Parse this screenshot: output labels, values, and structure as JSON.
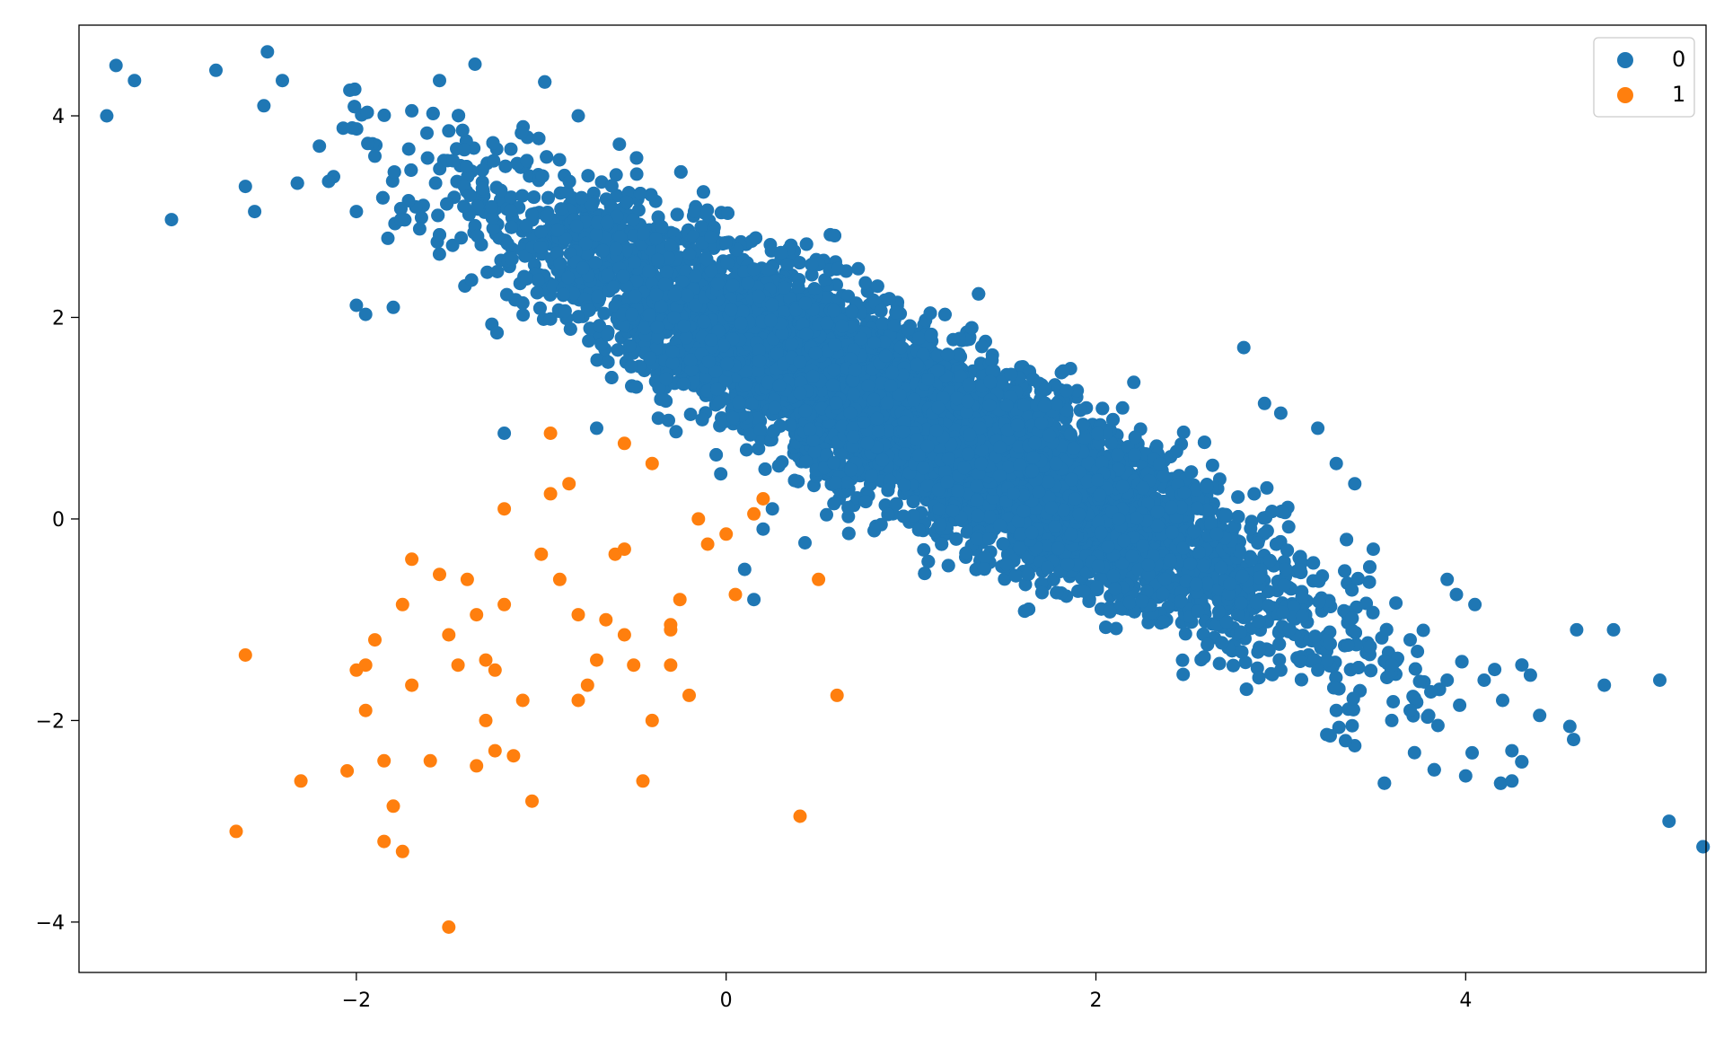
{
  "chart_data": {
    "type": "scatter",
    "title": "",
    "xlabel": "",
    "ylabel": "",
    "xlim": [
      -3.5,
      5.3
    ],
    "ylim": [
      -4.5,
      4.9
    ],
    "xticks": [
      -2,
      0,
      2,
      4
    ],
    "yticks": [
      -4,
      -2,
      0,
      2,
      4
    ],
    "tick_labels": {
      "x": [
        "−2",
        "0",
        "2",
        "4"
      ],
      "y": [
        "−4",
        "−2",
        "0",
        "2",
        "4"
      ]
    },
    "grid": false,
    "legend": {
      "placement": "top-right",
      "entries": [
        "0",
        "1"
      ]
    },
    "series": [
      {
        "name": "0",
        "color": "#1f77b4",
        "distribution": {
          "n": 9900,
          "mean": [
            1.0,
            1.0
          ],
          "std": [
            1.0,
            1.0
          ],
          "correlation": -0.9
        },
        "points": [
          [
            -3.3,
            4.5
          ],
          [
            -3.2,
            4.35
          ],
          [
            -3.35,
            4.0
          ],
          [
            -2.4,
            4.35
          ],
          [
            -2.5,
            4.1
          ],
          [
            -1.55,
            4.35
          ],
          [
            -0.8,
            4.0
          ],
          [
            -2.6,
            3.3
          ],
          [
            -2.55,
            3.05
          ],
          [
            -3.0,
            2.97
          ],
          [
            -2.2,
            3.7
          ],
          [
            -1.7,
            4.05
          ],
          [
            -1.5,
            3.85
          ],
          [
            -2.0,
            2.12
          ],
          [
            -1.95,
            2.03
          ],
          [
            -1.8,
            2.1
          ],
          [
            -2.0,
            3.05
          ],
          [
            -1.9,
            3.6
          ],
          [
            -2.15,
            3.35
          ],
          [
            -1.2,
            0.85
          ],
          [
            -0.7,
            0.9
          ],
          [
            0.15,
            -0.8
          ],
          [
            0.1,
            -0.5
          ],
          [
            0.2,
            -0.1
          ],
          [
            0.25,
            0.1
          ],
          [
            2.8,
            1.7
          ],
          [
            3.0,
            1.05
          ],
          [
            3.2,
            0.9
          ],
          [
            3.3,
            0.55
          ],
          [
            3.4,
            0.35
          ],
          [
            3.9,
            -0.6
          ],
          [
            3.95,
            -0.75
          ],
          [
            4.1,
            -1.6
          ],
          [
            4.2,
            -1.8
          ],
          [
            4.35,
            -1.55
          ],
          [
            4.4,
            -1.95
          ],
          [
            4.6,
            -1.1
          ],
          [
            4.8,
            -1.1
          ],
          [
            4.75,
            -1.65
          ],
          [
            5.05,
            -1.6
          ],
          [
            5.1,
            -3.0
          ],
          [
            4.0,
            -2.55
          ],
          [
            4.25,
            -2.3
          ],
          [
            4.25,
            -2.6
          ],
          [
            3.85,
            -2.05
          ],
          [
            3.4,
            -2.25
          ],
          [
            3.35,
            -2.2
          ],
          [
            3.5,
            -0.3
          ],
          [
            3.2,
            -1.5
          ],
          [
            3.6,
            -1.45
          ],
          [
            3.7,
            -1.9
          ],
          [
            3.8,
            -1.95
          ],
          [
            3.9,
            -1.6
          ],
          [
            4.05,
            -0.85
          ],
          [
            3.7,
            -1.2
          ],
          [
            3.6,
            -2.0
          ],
          [
            3.3,
            -1.9
          ],
          [
            3.0,
            -1.5
          ]
        ]
      },
      {
        "name": "1",
        "color": "#ff7f0e",
        "points": [
          [
            -2.6,
            -1.35
          ],
          [
            -2.65,
            -3.1
          ],
          [
            -2.3,
            -2.6
          ],
          [
            -2.05,
            -2.5
          ],
          [
            -2.0,
            -1.5
          ],
          [
            -1.9,
            -1.2
          ],
          [
            -1.85,
            -3.2
          ],
          [
            -1.85,
            -2.4
          ],
          [
            -1.8,
            -2.85
          ],
          [
            -1.7,
            -1.65
          ],
          [
            -1.75,
            -0.85
          ],
          [
            -1.7,
            -0.4
          ],
          [
            -1.55,
            -0.55
          ],
          [
            -1.5,
            -1.15
          ],
          [
            -1.45,
            -1.45
          ],
          [
            -1.4,
            -0.6
          ],
          [
            -1.35,
            -0.95
          ],
          [
            -1.3,
            -1.4
          ],
          [
            -1.3,
            -2.0
          ],
          [
            -1.25,
            -1.5
          ],
          [
            -1.2,
            -0.85
          ],
          [
            -1.15,
            -2.35
          ],
          [
            -1.1,
            -1.8
          ],
          [
            -1.0,
            -0.35
          ],
          [
            -0.95,
            0.25
          ],
          [
            -0.9,
            -0.6
          ],
          [
            -0.85,
            0.35
          ],
          [
            -0.8,
            -0.95
          ],
          [
            -0.75,
            -1.65
          ],
          [
            -0.7,
            -1.4
          ],
          [
            -0.6,
            -0.35
          ],
          [
            -0.55,
            -1.15
          ],
          [
            -0.5,
            -1.45
          ],
          [
            -0.45,
            -2.6
          ],
          [
            -0.4,
            -2.0
          ],
          [
            -0.3,
            -1.05
          ],
          [
            -0.25,
            -0.8
          ],
          [
            -0.2,
            -1.75
          ],
          [
            -0.15,
            0.0
          ],
          [
            -0.1,
            -0.25
          ],
          [
            0.0,
            -0.15
          ],
          [
            0.05,
            -0.75
          ],
          [
            0.15,
            0.05
          ],
          [
            0.2,
            0.2
          ],
          [
            0.4,
            -2.95
          ],
          [
            0.5,
            -0.6
          ],
          [
            0.6,
            -1.75
          ],
          [
            -0.55,
            0.75
          ],
          [
            -0.4,
            0.55
          ],
          [
            -0.95,
            0.85
          ],
          [
            -1.2,
            0.1
          ],
          [
            -1.5,
            -4.05
          ],
          [
            -1.75,
            -3.3
          ],
          [
            -1.95,
            -1.9
          ],
          [
            -1.95,
            -1.45
          ],
          [
            -1.6,
            -2.4
          ],
          [
            -1.35,
            -2.45
          ],
          [
            -1.25,
            -2.3
          ],
          [
            -1.05,
            -2.8
          ],
          [
            -0.8,
            -1.8
          ],
          [
            -0.65,
            -1.0
          ],
          [
            -0.55,
            -0.3
          ],
          [
            -0.3,
            -1.45
          ],
          [
            -0.3,
            -1.1
          ]
        ]
      }
    ]
  }
}
